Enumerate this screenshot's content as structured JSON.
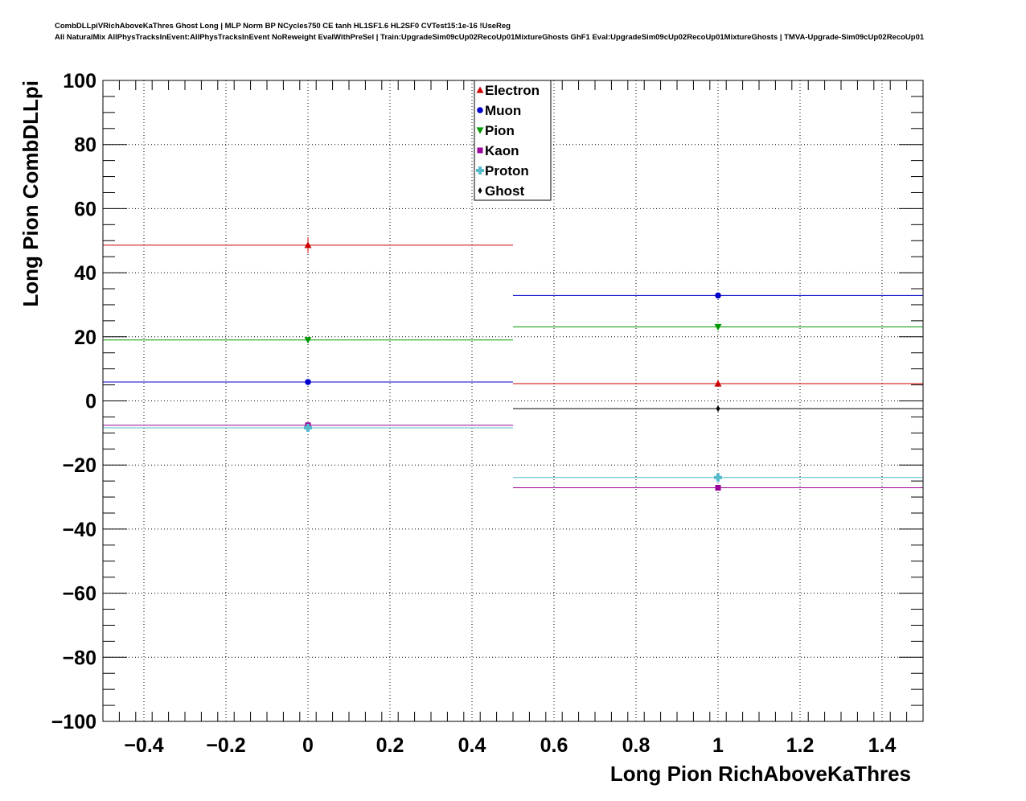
{
  "chart_data": {
    "type": "scatter",
    "title_lines": [
      "CombDLLpiVRichAboveKaThres Ghost Long | MLP Norm BP NCycles750 CE tanh HL1SF1.6 HL2SF0 CVTest15:1e-16 !UseReg",
      "All NaturalMix AllPhysTracksInEvent:AllPhysTracksInEvent NoReweight EvalWithPreSel | Train:UpgradeSim09cUp02RecoUp01MixtureGhosts GhF1 Eval:UpgradeSim09cUp02RecoUp01MixtureGhosts | TMVA-Upgrade-Sim09cUp02RecoUp01"
    ],
    "xlabel": "Long Pion RichAboveKaThres",
    "ylabel": "Long Pion CombDLLpi",
    "xlim": [
      -0.5,
      1.5
    ],
    "ylim": [
      -100,
      100
    ],
    "xticks": [
      -0.4,
      -0.2,
      0,
      0.2,
      0.4,
      0.6,
      0.8,
      1,
      1.2,
      1.4
    ],
    "xtick_labels": [
      "−0.4",
      "−0.2",
      "0",
      "0.2",
      "0.4",
      "0.6",
      "0.8",
      "1",
      "1.2",
      "1.4"
    ],
    "yticks": [
      -100,
      -80,
      -60,
      -40,
      -20,
      0,
      20,
      40,
      60,
      80,
      100
    ],
    "ytick_labels": [
      "−100",
      "−80",
      "−60",
      "−40",
      "−20",
      "0",
      "20",
      "40",
      "60",
      "80",
      "100"
    ],
    "grid": true,
    "legend_position": "top-center",
    "bins": [
      {
        "x": 0,
        "x_low": -0.5,
        "x_high": 0.5
      },
      {
        "x": 1,
        "x_low": 0.5,
        "x_high": 1.5
      }
    ],
    "series": [
      {
        "name": "Electron",
        "color": "#cc0000",
        "marker": "triangle-up",
        "values": [
          48.6,
          5.4
        ],
        "errors": [
          2.5,
          0.5
        ],
        "bin_index": [
          0,
          1
        ]
      },
      {
        "name": "Muon",
        "color": "#0000cc",
        "marker": "circle",
        "values": [
          5.9,
          32.9
        ],
        "errors": [
          0.6,
          0.6
        ],
        "bin_index": [
          0,
          1
        ]
      },
      {
        "name": "Pion",
        "color": "#009900",
        "marker": "triangle-down",
        "values": [
          19.0,
          23.1
        ],
        "errors": [
          0.3,
          0.3
        ],
        "bin_index": [
          0,
          1
        ]
      },
      {
        "name": "Kaon",
        "color": "#990099",
        "marker": "square",
        "values": [
          -7.6,
          -27.1
        ],
        "errors": [
          0.3,
          0.4
        ],
        "bin_index": [
          0,
          1
        ]
      },
      {
        "name": "Proton",
        "color": "#55bbcc",
        "marker": "cross",
        "values": [
          -8.4,
          -23.9
        ],
        "errors": [
          0.3,
          0.4
        ],
        "bin_index": [
          0,
          1
        ]
      },
      {
        "name": "Ghost",
        "color": "#000000",
        "marker": "diamond",
        "values": [
          null,
          -2.4
        ],
        "errors": [
          null,
          0.3
        ],
        "bin_index": [
          0,
          1
        ]
      }
    ]
  }
}
